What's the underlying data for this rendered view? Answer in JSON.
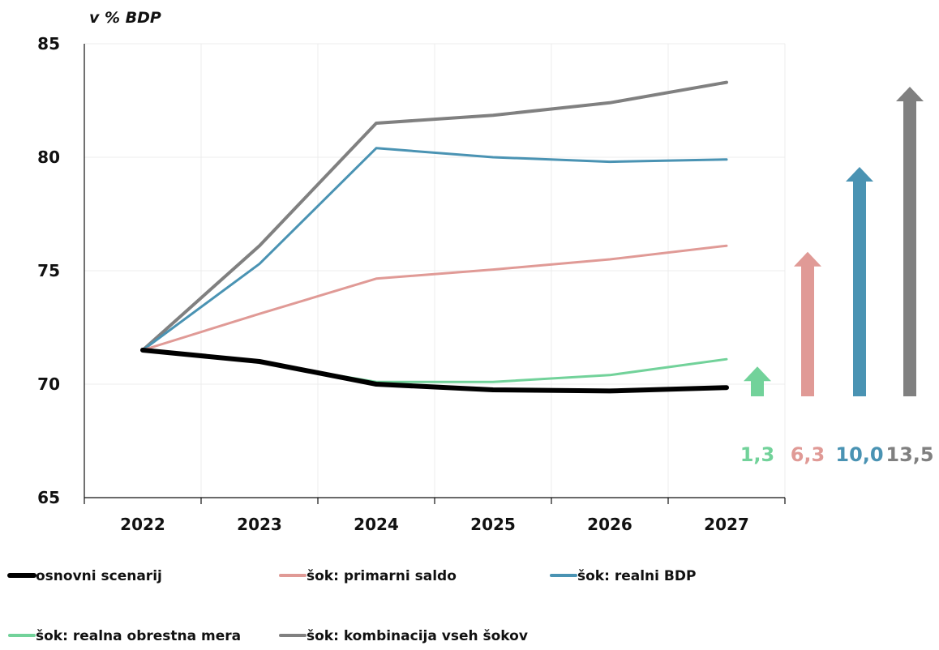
{
  "chart_data": {
    "type": "line",
    "unit_label": "v % BDP",
    "x": [
      "2022",
      "2023",
      "2024",
      "2025",
      "2026",
      "2027"
    ],
    "ylim": [
      65,
      85
    ],
    "yticks": [
      "65",
      "70",
      "75",
      "80",
      "85"
    ],
    "grid": true,
    "legend_position": "bottom",
    "series": [
      {
        "name": "šok: kombinacija vseh šokov",
        "color": "#808080",
        "width": 4,
        "values": [
          71.5,
          76.1,
          81.5,
          81.85,
          82.4,
          83.3
        ]
      },
      {
        "name": "šok: realni BDP",
        "color": "#4a93b3",
        "width": 3,
        "values": [
          71.5,
          75.3,
          80.4,
          80.0,
          79.8,
          79.9
        ]
      },
      {
        "name": "šok: primarni saldo",
        "color": "#e09a96",
        "width": 3,
        "values": [
          71.5,
          73.1,
          74.65,
          75.05,
          75.5,
          76.1
        ]
      },
      {
        "name": "šok: realna obrestna mera",
        "color": "#72d29a",
        "width": 3,
        "values": [
          71.5,
          70.95,
          70.1,
          70.1,
          70.4,
          71.1
        ]
      },
      {
        "name": "osnovni scenarij",
        "color": "#000000",
        "width": 6,
        "values": [
          71.5,
          71.0,
          70.0,
          69.75,
          69.7,
          69.85
        ]
      }
    ],
    "deltas": [
      {
        "label": "1,3",
        "value": 1.3,
        "color": "#72d29a"
      },
      {
        "label": "6,3",
        "value": 6.3,
        "color": "#e09a96"
      },
      {
        "label": "10,0",
        "value": 10.0,
        "color": "#4a93b3"
      },
      {
        "label": "13,5",
        "value": 13.5,
        "color": "#808080"
      }
    ],
    "legend": [
      {
        "name": "osnovni scenarij",
        "color": "#000000"
      },
      {
        "name": "šok: primarni saldo",
        "color": "#e09a96"
      },
      {
        "name": "šok: realni BDP",
        "color": "#4a93b3"
      },
      {
        "name": "šok: realna obrestna mera",
        "color": "#72d29a"
      },
      {
        "name": "šok: kombinacija vseh šokov",
        "color": "#808080"
      }
    ]
  }
}
